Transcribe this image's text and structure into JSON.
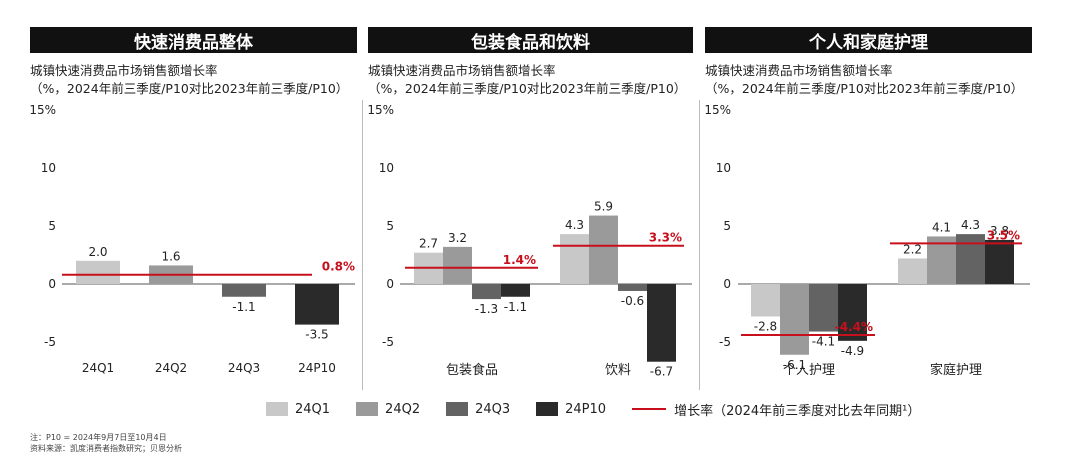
{
  "headers": [
    "快速消费品整体",
    "包装食品和饮料",
    "个人和家庭护理"
  ],
  "subtitle_line1": "城镇快速消费品市场销售额增长率",
  "subtitle_line2": "（%，2024年前三季度/P10对比2023年前三季度/P10）",
  "colors": {
    "24Q1": "#c8c8c8",
    "24Q2": "#9a9a9a",
    "24Q3": "#636363",
    "24P10": "#2a2a2a",
    "growth_line": "#c8101d",
    "header_bg": "#111111"
  },
  "legend": {
    "items": [
      {
        "key": "24Q1",
        "label": "24Q1"
      },
      {
        "key": "24Q2",
        "label": "24Q2"
      },
      {
        "key": "24Q3",
        "label": "24Q3"
      },
      {
        "key": "24P10",
        "label": "24P10"
      }
    ],
    "line_label": "增长率（2024年前三季度对比去年同期¹）"
  },
  "notes": {
    "line1": "注：P10 = 2024年9月7日至10月4日",
    "line2": "资料来源：凯度消费者指数研究；贝恩分析"
  },
  "chart_data": [
    {
      "type": "bar",
      "title": "快速消费品整体",
      "ylim": [
        -5,
        15
      ],
      "yticks": [
        -5,
        0,
        5,
        10,
        15
      ],
      "ytick_labels": [
        "-5",
        "0",
        "5",
        "10",
        "15%"
      ],
      "grouped": false,
      "categories": [
        "24Q1",
        "24Q2",
        "24Q3",
        "24P10"
      ],
      "values": [
        2.0,
        1.6,
        -1.1,
        -3.5
      ],
      "value_labels": [
        "2.0",
        "1.6",
        "-1.1",
        "-3.5"
      ],
      "growth_lines": [
        {
          "value": 0.8,
          "label": "0.8%"
        }
      ]
    },
    {
      "type": "bar",
      "title": "包装食品和饮料",
      "ylim": [
        -5,
        15
      ],
      "yticks": [
        -5,
        0,
        5,
        10,
        15
      ],
      "ytick_labels": [
        "-5",
        "0",
        "5",
        "10",
        "15%"
      ],
      "grouped": true,
      "groups": [
        "包装食品",
        "饮料"
      ],
      "series": [
        {
          "name": "24Q1",
          "values": [
            2.7,
            4.3
          ],
          "labels": [
            "2.7",
            "4.3"
          ]
        },
        {
          "name": "24Q2",
          "values": [
            3.2,
            5.9
          ],
          "labels": [
            "3.2",
            "5.9"
          ]
        },
        {
          "name": "24Q3",
          "values": [
            -1.3,
            -0.6
          ],
          "labels": [
            "-1.3",
            "-0.6"
          ]
        },
        {
          "name": "24P10",
          "values": [
            -1.1,
            -6.7
          ],
          "labels": [
            "-1.1",
            "-6.7"
          ]
        }
      ],
      "growth_lines": [
        {
          "value": 1.4,
          "label": "1.4%"
        },
        {
          "value": 3.3,
          "label": "3.3%"
        }
      ]
    },
    {
      "type": "bar",
      "title": "个人和家庭护理",
      "ylim": [
        -5,
        15
      ],
      "yticks": [
        -5,
        0,
        5,
        10,
        15
      ],
      "ytick_labels": [
        "-5",
        "0",
        "5",
        "10",
        "15%"
      ],
      "grouped": true,
      "groups": [
        "个人护理",
        "家庭护理"
      ],
      "series": [
        {
          "name": "24Q1",
          "values": [
            -2.8,
            2.2
          ],
          "labels": [
            "-2.8",
            "2.2"
          ]
        },
        {
          "name": "24Q2",
          "values": [
            -6.1,
            4.1
          ],
          "labels": [
            "-6.1",
            "4.1"
          ]
        },
        {
          "name": "24Q3",
          "values": [
            -4.1,
            4.3
          ],
          "labels": [
            "-4.1",
            "4.3"
          ]
        },
        {
          "name": "24P10",
          "values": [
            -4.9,
            3.8
          ],
          "labels": [
            "-4.9",
            "3.8"
          ]
        }
      ],
      "growth_lines": [
        {
          "value": -4.4,
          "label": "-4.4%"
        },
        {
          "value": 3.5,
          "label": "3.5%"
        }
      ]
    }
  ]
}
